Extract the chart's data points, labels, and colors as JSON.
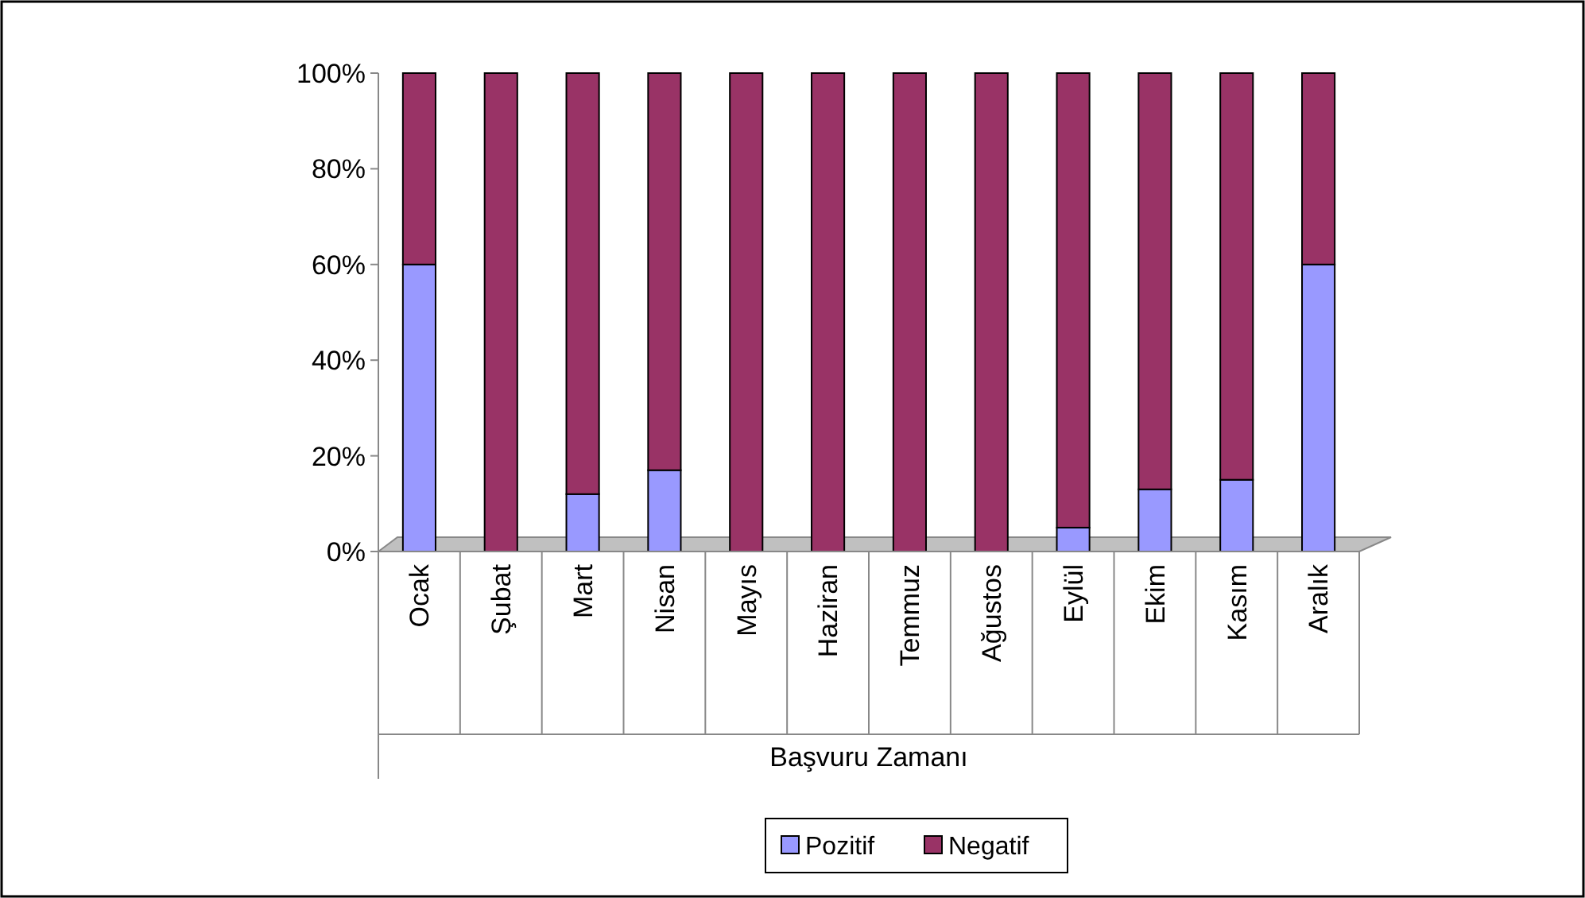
{
  "chart_data": {
    "type": "bar",
    "stacked": true,
    "xlabel": "Başvuru Zamanı",
    "categories": [
      "Ocak",
      "Şubat",
      "Mart",
      "Nisan",
      "Mayıs",
      "Haziran",
      "Temmuz",
      "Ağustos",
      "Eylül",
      "Ekim",
      "Kasım",
      "Aralık"
    ],
    "series": [
      {
        "name": "Pozitif",
        "color": "#9999ff",
        "values": [
          60,
          0,
          12,
          17,
          0,
          0,
          0,
          0,
          5,
          13,
          15,
          60
        ]
      },
      {
        "name": "Negatif",
        "color": "#993366",
        "values": [
          40,
          100,
          88,
          83,
          100,
          100,
          100,
          100,
          95,
          87,
          85,
          40
        ]
      }
    ],
    "ylim": [
      0,
      100
    ],
    "yticks": [
      {
        "value": 0,
        "label": "0%"
      },
      {
        "value": 20,
        "label": "20%"
      },
      {
        "value": 40,
        "label": "40%"
      },
      {
        "value": 60,
        "label": "60%"
      },
      {
        "value": 80,
        "label": "80%"
      },
      {
        "value": 100,
        "label": "100%"
      }
    ],
    "grid": false,
    "legend": "bottom"
  }
}
